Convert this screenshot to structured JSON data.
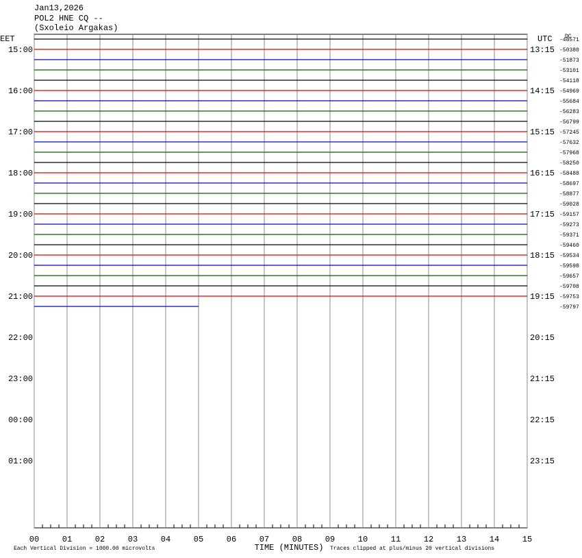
{
  "chart_data": {
    "type": "helicorder",
    "title_lines": [
      "Jan13,2026",
      "POL2 HNE CQ --",
      "(Sxoleio Argakas)"
    ],
    "left_zone": "EET",
    "right_zone": "UTC",
    "dc_label": "DC",
    "left_times": [
      "15:00",
      "16:00",
      "17:00",
      "18:00",
      "19:00",
      "20:00",
      "21:00",
      "22:00",
      "23:00",
      "00:00",
      "01:00"
    ],
    "right_times": [
      "13:15",
      "14:15",
      "15:15",
      "16:15",
      "17:15",
      "18:15",
      "19:15",
      "20:15",
      "21:15",
      "22:15",
      "23:15"
    ],
    "xlabel": "TIME (MINUTES)",
    "xlim": [
      0,
      15
    ],
    "xticks": [
      {
        "value": 0,
        "label": "00"
      },
      {
        "value": 1,
        "label": "01"
      },
      {
        "value": 2,
        "label": "02"
      },
      {
        "value": 3,
        "label": "03"
      },
      {
        "value": 4,
        "label": "04"
      },
      {
        "value": 5,
        "label": "05"
      },
      {
        "value": 6,
        "label": "06"
      },
      {
        "value": 7,
        "label": "07"
      },
      {
        "value": 8,
        "label": "08"
      },
      {
        "value": 9,
        "label": "09"
      },
      10,
      11,
      12,
      13,
      14,
      15
    ],
    "colors": [
      "#000000",
      "#e00000",
      "#0000d0",
      "#006400"
    ],
    "offsets": [
      -48571,
      -50380,
      -51873,
      -53101,
      -54118,
      -54969,
      -55684,
      -56283,
      -56799,
      -57245,
      -57632,
      -57968,
      -58250,
      -58488,
      -58697,
      -58877,
      -59028,
      -59157,
      -59273,
      -59371,
      -59460,
      -59534,
      -59598,
      -59657,
      -59708,
      -59753,
      -59797
    ],
    "last_trace_end": 5,
    "footer_left": "Each Vertical Division = 1000.00 microvolts",
    "footer_right": "Traces clipped at plus/minus 20 vertical divisions"
  }
}
